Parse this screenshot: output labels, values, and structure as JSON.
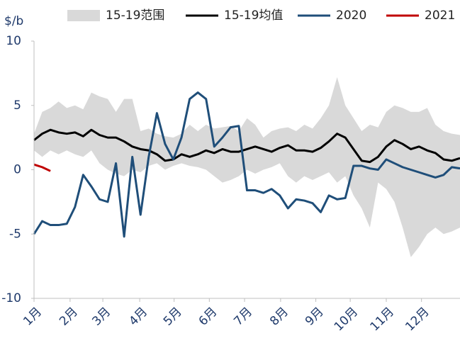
{
  "chart_data": {
    "type": "line",
    "y_label": "$/b",
    "x": [
      0,
      1,
      2,
      3,
      4,
      5,
      6,
      7,
      8,
      9,
      10,
      11,
      12,
      13,
      14,
      15,
      16,
      17,
      18,
      19,
      20,
      21,
      22,
      23,
      24,
      25,
      26,
      27,
      28,
      29,
      30,
      31,
      32,
      33,
      34,
      35,
      36,
      37,
      38,
      39,
      40,
      41,
      42,
      43,
      44,
      45,
      46,
      47,
      48,
      49,
      50,
      51,
      52
    ],
    "xlim": [
      0,
      52
    ],
    "xticks": [
      {
        "value": 0,
        "label": "1月"
      },
      {
        "value": 4.4,
        "label": "2月"
      },
      {
        "value": 8.4,
        "label": "3月"
      },
      {
        "value": 12.9,
        "label": "4月"
      },
      {
        "value": 17.1,
        "label": "5月"
      },
      {
        "value": 21.4,
        "label": "6月"
      },
      {
        "value": 25.7,
        "label": "7月"
      },
      {
        "value": 30.1,
        "label": "8月"
      },
      {
        "value": 34.4,
        "label": "9月"
      },
      {
        "value": 38.6,
        "label": "10月"
      },
      {
        "value": 43,
        "label": "11月"
      },
      {
        "value": 47.3,
        "label": "12月"
      }
    ],
    "ylim": [
      -10,
      10
    ],
    "yticks": [
      10,
      5,
      0,
      -5,
      -10
    ],
    "legend": "top",
    "series": [
      {
        "name": "15-19范围",
        "type": "range",
        "color": "#d9d9d9",
        "upper": [
          2.8,
          4.5,
          4.8,
          5.3,
          4.8,
          5,
          4.7,
          6,
          5.7,
          5.5,
          4.5,
          5.5,
          5.5,
          3,
          3.2,
          2.8,
          2.6,
          2.5,
          2.8,
          3.5,
          3,
          3.5,
          3.2,
          3.3,
          3.4,
          3,
          4,
          3.5,
          2.5,
          3,
          3.2,
          3.3,
          3,
          3.5,
          3.2,
          4,
          5,
          7.2,
          5,
          4,
          3,
          3.5,
          3.3,
          4.5,
          5,
          4.8,
          4.5,
          4.5,
          4.8,
          3.5,
          3,
          2.8,
          2.7
        ],
        "lower": [
          1.5,
          1,
          1.5,
          1.2,
          1.5,
          1.2,
          1,
          1.5,
          0.5,
          0,
          -0.3,
          -0.5,
          0,
          -0.2,
          0.3,
          0.5,
          0,
          0.3,
          0.5,
          0.3,
          0.2,
          0,
          -0.5,
          -1,
          -0.8,
          -0.5,
          0,
          -0.3,
          0,
          0.2,
          0.5,
          -0.5,
          -1,
          -0.5,
          -0.8,
          -0.5,
          -0.2,
          -1,
          -0.5,
          -2,
          -3,
          -4.5,
          -1,
          -1.5,
          -2.5,
          -4.5,
          -6.8,
          -6,
          -5,
          -4.5,
          -5,
          -4.8,
          -4.5
        ]
      },
      {
        "name": "15-19均值",
        "color": "#000000",
        "values": [
          2.3,
          2.8,
          3.1,
          2.9,
          2.8,
          2.9,
          2.6,
          3.1,
          2.7,
          2.5,
          2.5,
          2.2,
          1.8,
          1.6,
          1.5,
          1.2,
          0.7,
          0.8,
          1.2,
          1,
          1.2,
          1.5,
          1.3,
          1.6,
          1.4,
          1.4,
          1.6,
          1.8,
          1.6,
          1.4,
          1.7,
          1.9,
          1.5,
          1.5,
          1.4,
          1.7,
          2.2,
          2.8,
          2.5,
          1.6,
          0.7,
          0.6,
          1,
          1.8,
          2.3,
          2,
          1.6,
          1.8,
          1.5,
          1.3,
          0.8,
          0.7,
          0.9
        ]
      },
      {
        "name": "2020",
        "color": "#1f4e79",
        "values": [
          -5,
          -4,
          -4.3,
          -4.3,
          -4.2,
          -2.9,
          -0.4,
          -1.3,
          -2.3,
          -2.5,
          0.5,
          -5.2,
          1,
          -3.5,
          1,
          4.4,
          2,
          0.8,
          2.5,
          5.5,
          6,
          5.5,
          1.8,
          2.5,
          3.3,
          3.4,
          -1.6,
          -1.6,
          -1.8,
          -1.5,
          -2,
          -3,
          -2.3,
          -2.4,
          -2.6,
          -3.3,
          -2,
          -2.3,
          -2.2,
          0.3,
          0.3,
          0.1,
          0,
          0.8,
          0.5,
          0.2,
          0,
          -0.2,
          -0.4,
          -0.6,
          -0.4,
          0.2,
          0.1
        ]
      },
      {
        "name": "2021",
        "color": "#c00000",
        "values": [
          0.4,
          0.2,
          -0.1,
          null,
          null,
          null,
          null,
          null,
          null,
          null,
          null,
          null,
          null,
          null,
          null,
          null,
          null,
          null,
          null,
          null,
          null,
          null,
          null,
          null,
          null,
          null,
          null,
          null,
          null,
          null,
          null,
          null,
          null,
          null,
          null,
          null,
          null,
          null,
          null,
          null,
          null,
          null,
          null,
          null,
          null,
          null,
          null,
          null,
          null,
          null,
          null,
          null,
          null
        ]
      }
    ]
  }
}
